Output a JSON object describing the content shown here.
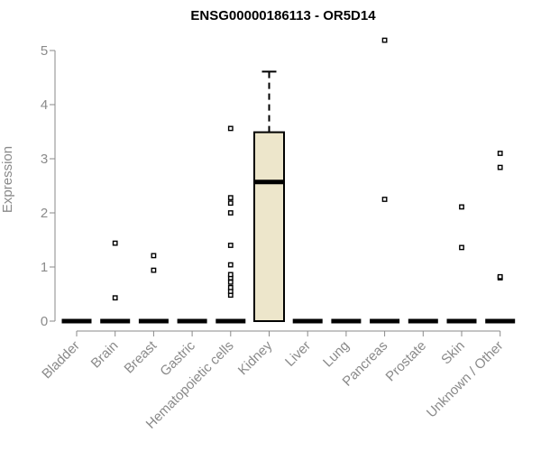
{
  "chart_data": {
    "type": "box",
    "title": "ENSG00000186113 - OR5D14",
    "xlabel": "",
    "ylabel": "Expression",
    "ylim": [
      0,
      5.2
    ],
    "yticks": [
      0,
      1,
      2,
      3,
      4,
      5
    ],
    "categories": [
      "Bladder",
      "Brain",
      "Breast",
      "Gastric",
      "Hematopoietic cells",
      "Kidney",
      "Liver",
      "Lung",
      "Pancreas",
      "Prostate",
      "Skin",
      "Unknown / Other"
    ],
    "boxes": [
      {
        "category": "Bladder",
        "q1": 0,
        "median": 0,
        "q3": 0,
        "whisker_low": 0,
        "whisker_high": 0,
        "outliers": []
      },
      {
        "category": "Brain",
        "q1": 0,
        "median": 0,
        "q3": 0,
        "whisker_low": 0,
        "whisker_high": 0,
        "outliers": [
          0.43,
          1.44
        ]
      },
      {
        "category": "Breast",
        "q1": 0,
        "median": 0,
        "q3": 0,
        "whisker_low": 0,
        "whisker_high": 0,
        "outliers": [
          0.94,
          1.21
        ]
      },
      {
        "category": "Gastric",
        "q1": 0,
        "median": 0,
        "q3": 0,
        "whisker_low": 0,
        "whisker_high": 0,
        "outliers": []
      },
      {
        "category": "Hematopoietic cells",
        "q1": 0,
        "median": 0,
        "q3": 0,
        "whisker_low": 0,
        "whisker_high": 0,
        "outliers": [
          0.48,
          0.55,
          0.62,
          0.72,
          0.8,
          0.86,
          1.04,
          1.4,
          2.0,
          2.18,
          2.28,
          3.56
        ]
      },
      {
        "category": "Kidney",
        "q1": 0,
        "median": 2.57,
        "q3": 3.49,
        "whisker_low": 0,
        "whisker_high": 4.61,
        "outliers": []
      },
      {
        "category": "Liver",
        "q1": 0,
        "median": 0,
        "q3": 0,
        "whisker_low": 0,
        "whisker_high": 0,
        "outliers": []
      },
      {
        "category": "Lung",
        "q1": 0,
        "median": 0,
        "q3": 0,
        "whisker_low": 0,
        "whisker_high": 0,
        "outliers": []
      },
      {
        "category": "Pancreas",
        "q1": 0,
        "median": 0,
        "q3": 0,
        "whisker_low": 0,
        "whisker_high": 0,
        "outliers": [
          2.25,
          5.19
        ]
      },
      {
        "category": "Prostate",
        "q1": 0,
        "median": 0,
        "q3": 0,
        "whisker_low": 0,
        "whisker_high": 0,
        "outliers": []
      },
      {
        "category": "Skin",
        "q1": 0,
        "median": 0,
        "q3": 0,
        "whisker_low": 0,
        "whisker_high": 0,
        "outliers": [
          1.36,
          2.11
        ]
      },
      {
        "category": "Unknown / Other",
        "q1": 0,
        "median": 0,
        "q3": 0,
        "whisker_low": 0,
        "whisker_high": 0,
        "outliers": [
          0.8,
          0.82,
          2.84,
          3.1
        ]
      }
    ],
    "box_fill": "#ede6cb",
    "box_stroke": "#000000",
    "axis_color": "#8a8a8a",
    "grid": false,
    "legend": "none"
  }
}
